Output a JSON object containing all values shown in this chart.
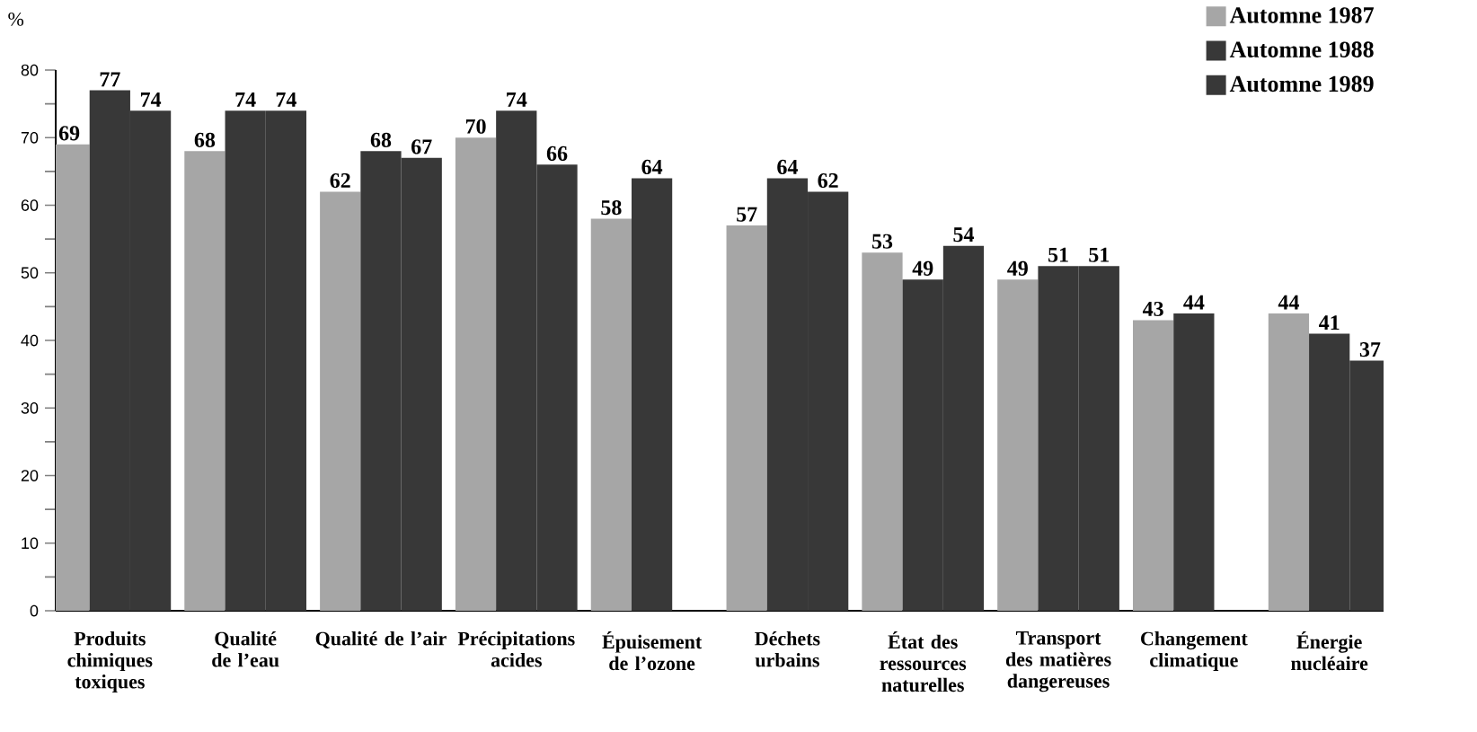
{
  "chart_data": {
    "type": "bar",
    "categories": [
      "Produits chimiques toxiques",
      "Qualité de l’eau",
      "Qualité de l’air",
      "Précipitations acides",
      "Épuisement de l’ozone",
      "Déchets urbains",
      "État des ressources naturelles",
      "Transport des matières dangereuses",
      "Changement climatique",
      "Énergie nucléaire"
    ],
    "series": [
      {
        "name": "Automne 1987",
        "color": "#a6a6a6",
        "values": [
          69,
          68,
          62,
          70,
          58,
          57,
          53,
          49,
          43,
          44
        ]
      },
      {
        "name": "Automne 1988",
        "color": "#383838",
        "values": [
          77,
          74,
          68,
          74,
          64,
          64,
          49,
          51,
          44,
          41
        ]
      },
      {
        "name": "Automne 1989",
        "color": "#383838",
        "values": [
          74,
          74,
          67,
          66,
          null,
          62,
          54,
          51,
          null,
          37
        ]
      }
    ],
    "ylabel": "%",
    "ylim": [
      0,
      80
    ],
    "yticks": [
      0,
      {
        "value": 5,
        "label": null
      },
      10,
      {
        "value": 15,
        "label": null
      },
      20,
      {
        "value": 25,
        "label": null
      },
      30,
      {
        "value": 35,
        "label": null
      },
      40,
      {
        "value": 45,
        "label": null
      },
      50,
      {
        "value": 55,
        "label": null
      },
      60,
      {
        "value": 65,
        "label": null
      },
      70,
      {
        "value": 75,
        "label": null
      },
      80
    ],
    "data_labels": true,
    "legend": "top right"
  }
}
